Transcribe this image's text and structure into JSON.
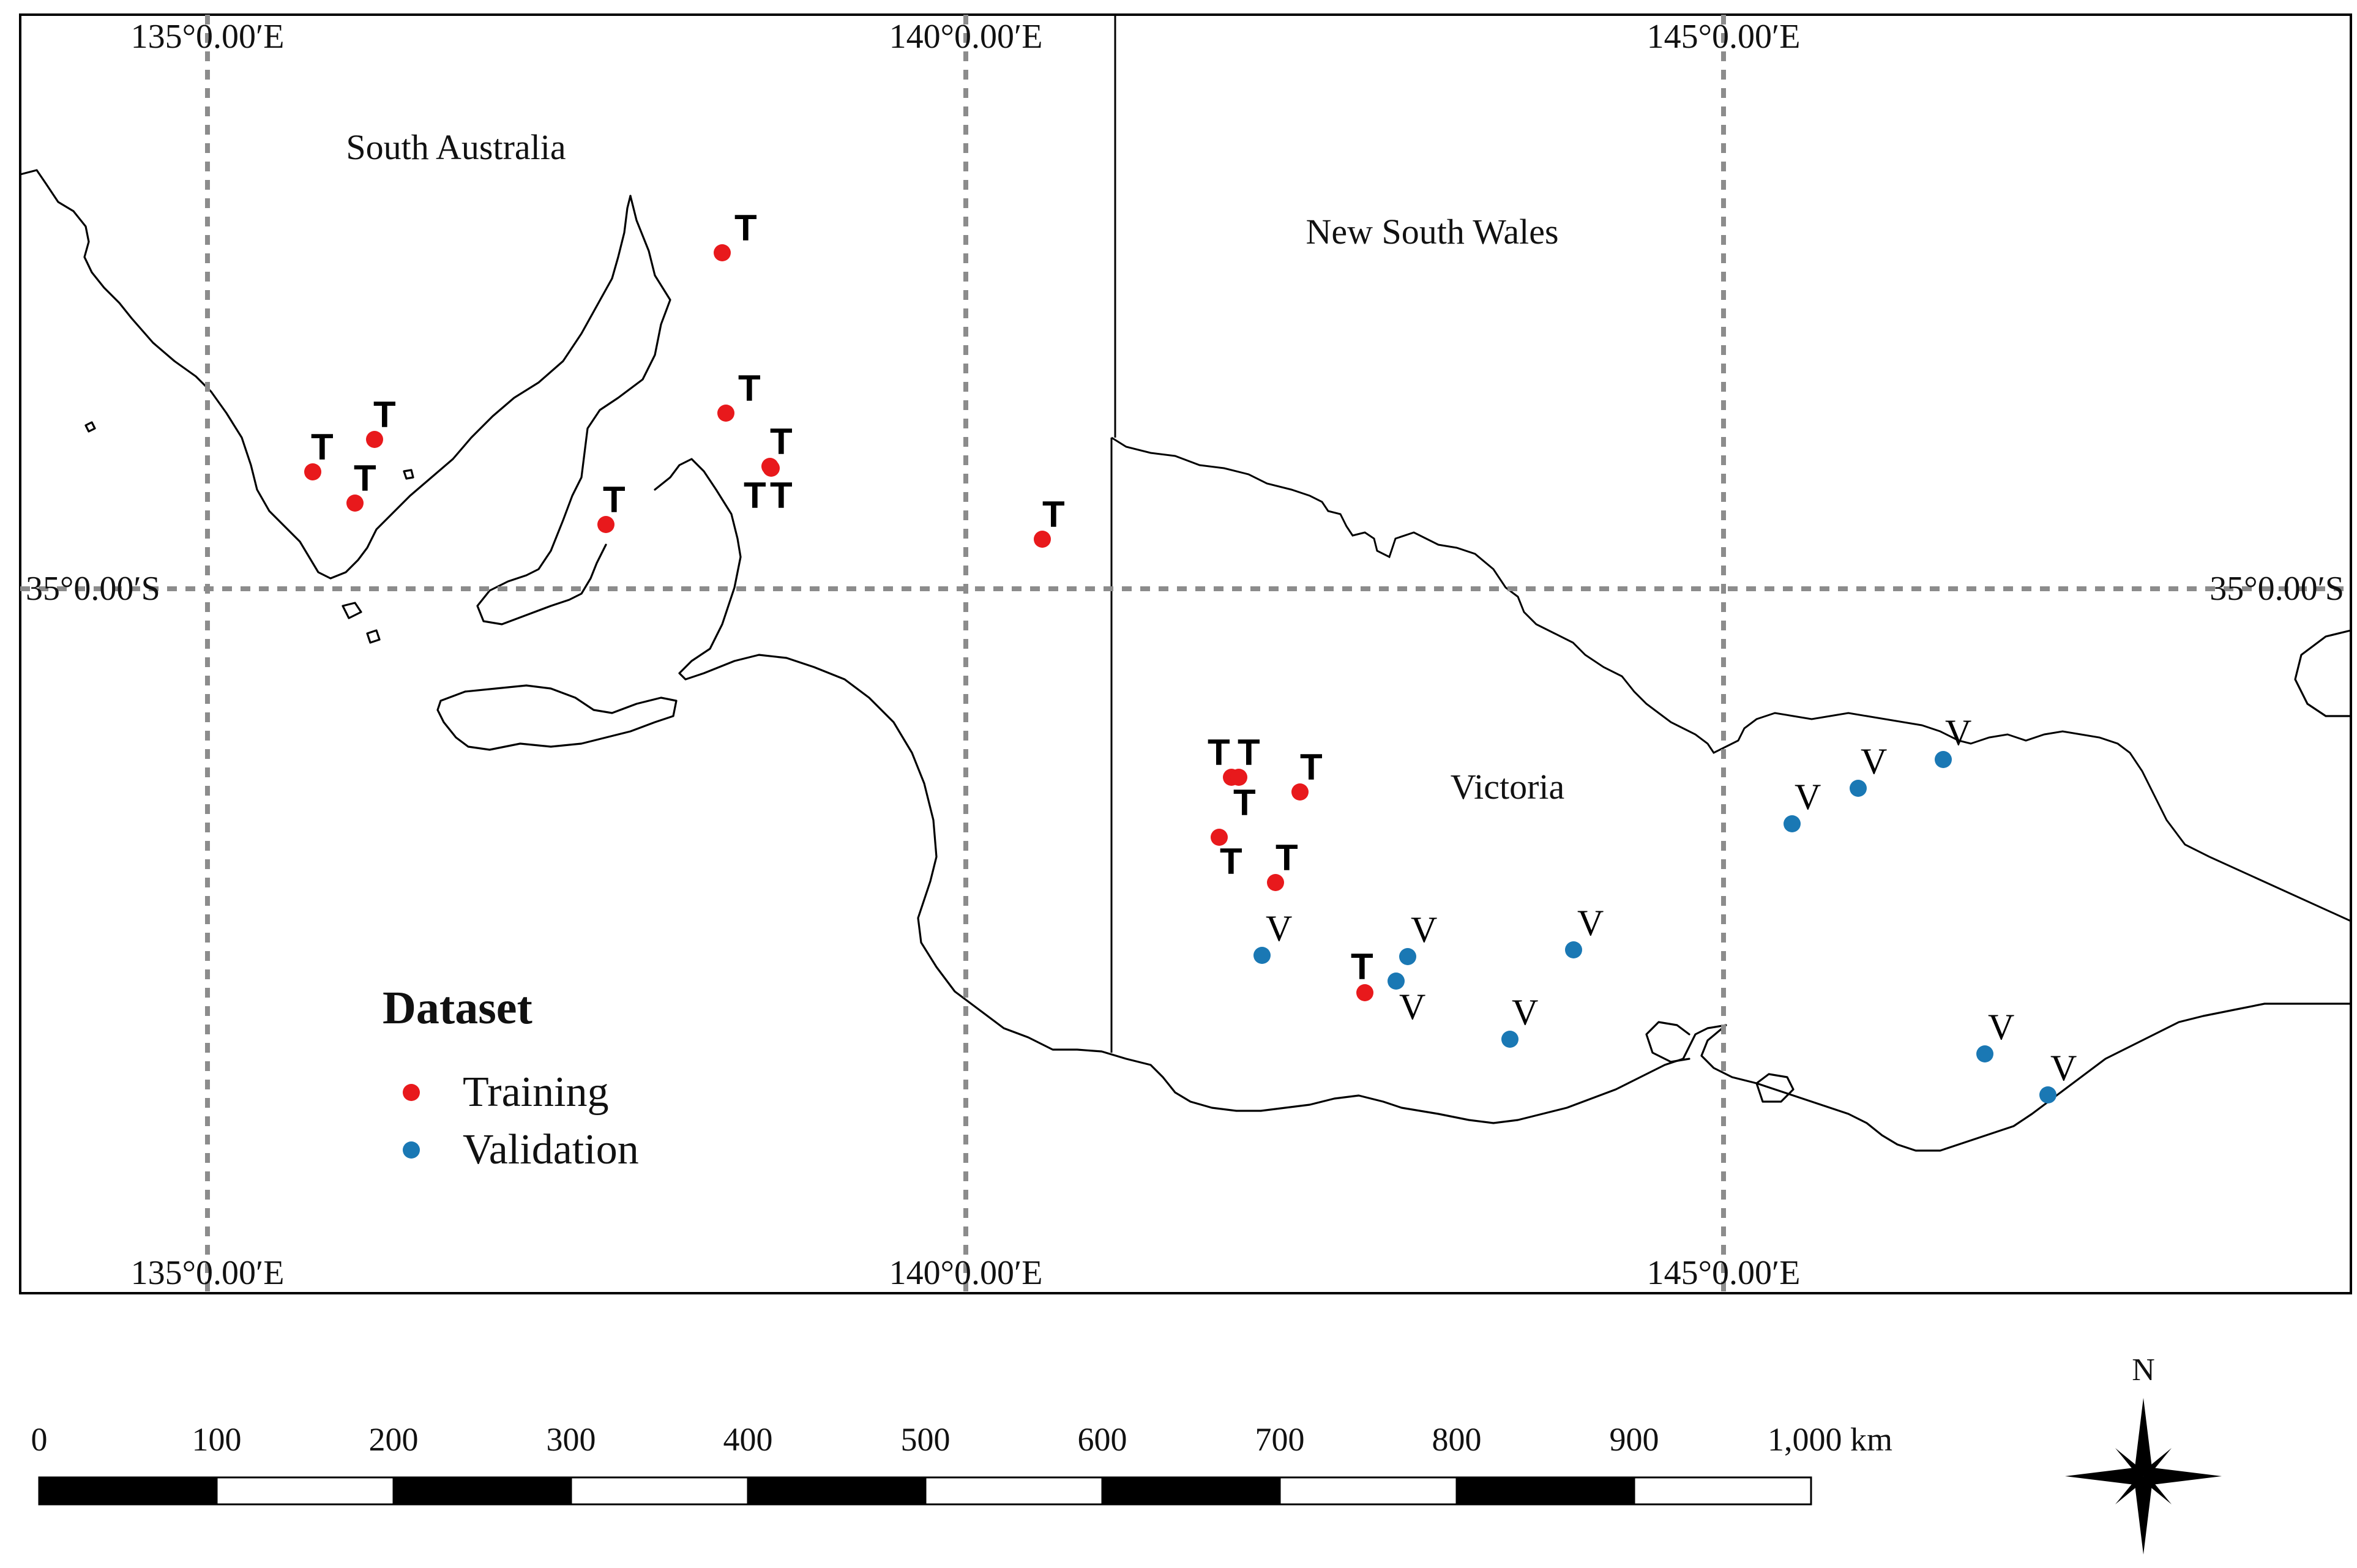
{
  "map": {
    "grid": {
      "longitude_labels_top": [
        "135°0.00′E",
        "140°0.00′E",
        "145°0.00′E"
      ],
      "longitude_labels_bottom": [
        "135°0.00′E",
        "140°0.00′E",
        "145°0.00′E"
      ],
      "latitude_label_left": "35°0.00′S",
      "latitude_label_right": "35°0.00′S"
    },
    "states": {
      "south_australia": "South Australia",
      "new_south_wales": "New South Wales",
      "victoria": "Victoria"
    },
    "legend": {
      "title": "Dataset",
      "items": [
        {
          "label": "Training",
          "color": "#e8191c"
        },
        {
          "label": "Validation",
          "color": "#1a78b4"
        }
      ]
    },
    "marker_text": {
      "training": "T",
      "validation": "V"
    },
    "scale_bar": {
      "labels": [
        "0",
        "100",
        "200",
        "300",
        "400",
        "500",
        "600",
        "700",
        "800",
        "900",
        "1,000 km"
      ]
    },
    "north_arrow": {
      "label": "N",
      "icon": "compass-rose-icon"
    }
  }
}
